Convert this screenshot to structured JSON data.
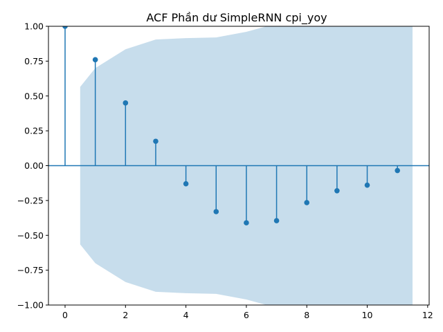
{
  "chart_data": {
    "type": "stem",
    "title": "ACF Phần dư SimpleRNN cpi_yoy",
    "xlabel": "",
    "ylabel": "",
    "xlim": [
      -0.55,
      12.05
    ],
    "ylim": [
      -1.0,
      1.0
    ],
    "x_ticks": [
      0,
      2,
      4,
      6,
      8,
      10,
      12
    ],
    "y_ticks": [
      -1.0,
      -0.75,
      -0.5,
      -0.25,
      0.0,
      0.25,
      0.5,
      0.75,
      1.0
    ],
    "x_tick_labels": [
      "0",
      "2",
      "4",
      "6",
      "8",
      "10",
      "12"
    ],
    "y_tick_labels": [
      "−1.00",
      "−0.75",
      "−0.50",
      "−0.25",
      "0.00",
      "0.25",
      "0.50",
      "0.75",
      "1.00"
    ],
    "grid": false,
    "series": [
      {
        "lags": [
          0,
          1,
          2,
          3,
          4,
          5,
          6,
          7,
          8,
          9,
          10,
          11
        ],
        "values": [
          1.0,
          0.76,
          0.45,
          0.175,
          -0.13,
          -0.33,
          -0.41,
          -0.395,
          -0.265,
          -0.18,
          -0.14,
          -0.035
        ],
        "color": "#1f77b4"
      }
    ],
    "confidence_band": {
      "x": [
        0.5,
        1,
        2,
        3,
        4,
        5,
        6,
        7,
        8,
        9,
        10,
        11,
        11.5
      ],
      "upper": [
        0.565,
        0.7,
        0.835,
        0.905,
        0.915,
        0.92,
        0.96,
        1.02,
        1.03,
        1.035,
        1.04,
        1.045,
        1.045
      ],
      "color": "#1f77b4",
      "opacity": 0.25
    }
  }
}
